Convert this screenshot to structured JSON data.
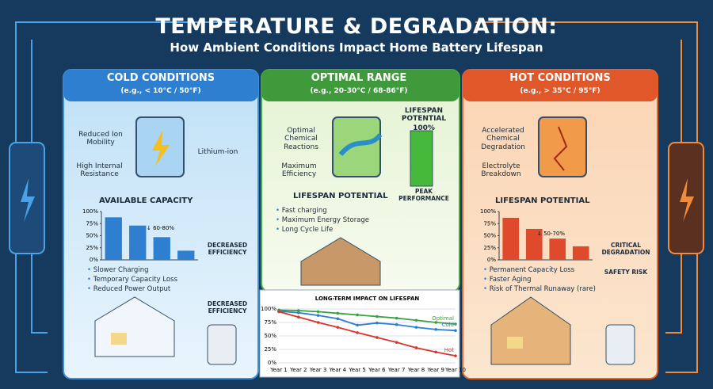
{
  "header": {
    "title": "TEMPERATURE & DEGRADATION:",
    "subtitle": "How Ambient Conditions Impact Home Battery Lifespan"
  },
  "panels": [
    {
      "title": "COLD CONDITIONS",
      "range": "(e.g., < 10°C / 50°F)",
      "callouts": [
        "Reduced Ion Mobility",
        "High Internal Resistance",
        "Lithium-ion"
      ],
      "section": "AVAILABLE CAPACITY",
      "bullets": [
        "Slower Charging",
        "Temporary Capacity Loss",
        "Reduced Power Output"
      ],
      "gauge_labels": [
        "DECREASED EFFICIENCY",
        "DECREASED EFFICIENCY"
      ]
    },
    {
      "title": "OPTIMAL RANGE",
      "range": "(e.g., 20-30°C / 68-86°F)",
      "callouts": [
        "Optimal Chemical Reactions",
        "Maximum Efficiency"
      ],
      "potential": {
        "label": "LIFESPAN POTENTIAL",
        "value": "100%",
        "caption": "PEAK PERFORMANCE"
      },
      "section": "LIFESPAN POTENTIAL",
      "bullets": [
        "Fast charging",
        "Maximum Energy Storage",
        "Long Cycle Life"
      ]
    },
    {
      "title": "HOT CONDITIONS",
      "range": "(e.g., > 35°C / 95°F)",
      "callouts": [
        "Accelerated Chemical Degradation",
        "Electrolyte Breakdown"
      ],
      "section": "LIFESPAN POTENTIAL",
      "bullets": [
        "Permanent Capacity Loss",
        "Faster Aging",
        "Risk of Thermal Runaway (rare)"
      ],
      "gauge_labels": [
        "CRITICAL DEGRADATION",
        "SAFETY RISK"
      ]
    }
  ],
  "chart_data": [
    {
      "type": "bar",
      "categories": [
        null,
        null,
        null,
        null
      ],
      "values": [
        88,
        71,
        47,
        19
      ],
      "color": "#2f7fd0",
      "ylim": [
        0,
        100
      ],
      "yticks": [
        {
          "value": 0,
          "label": "0%"
        },
        {
          "value": 25,
          "label": "25%"
        },
        {
          "value": 50,
          "label": "50%"
        },
        {
          "value": 75,
          "label": "75%"
        },
        {
          "value": 100,
          "label": "100%"
        }
      ],
      "annotation": "↓ 60-80%"
    },
    {
      "type": "bar",
      "categories": [
        null,
        null,
        null,
        null
      ],
      "values": [
        87,
        64,
        44,
        28
      ],
      "color": "#e04a2c",
      "ylim": [
        0,
        100
      ],
      "yticks": [
        {
          "value": 0,
          "label": "0%"
        },
        {
          "value": 25,
          "label": "25%"
        },
        {
          "value": 50,
          "label": "50%"
        },
        {
          "value": 75,
          "label": "75%"
        },
        {
          "value": 100,
          "label": "100%"
        }
      ],
      "annotation": "↓ 50-70%"
    },
    {
      "type": "line",
      "title": "LONG-TERM IMPACT ON LIFESPAN",
      "categories": [
        "Year 1",
        "Year 2",
        "Year 3",
        "Year 4",
        "Year 5",
        "Year 6",
        "Year 7",
        "Year 8",
        "Year 9",
        "Year 10"
      ],
      "ylim": [
        0,
        100
      ],
      "yticks": [
        {
          "value": 0,
          "label": "0%"
        },
        {
          "value": 25,
          "label": "25%"
        },
        {
          "value": 50,
          "label": "50%"
        },
        {
          "value": 75,
          "label": "75%"
        },
        {
          "value": 100,
          "label": "100%"
        }
      ],
      "grid": true,
      "series": [
        {
          "name": "Optimal",
          "color": "#3aa040",
          "values": [
            98,
            97,
            95,
            92,
            89,
            86,
            83,
            79,
            75,
            72
          ]
        },
        {
          "name": "Cold",
          "color": "#2a7fd4",
          "values": [
            96,
            93,
            88,
            82,
            70,
            74,
            71,
            66,
            62,
            60
          ]
        },
        {
          "name": "Hot",
          "color": "#d8362a",
          "values": [
            95,
            85,
            75,
            66,
            56,
            47,
            38,
            28,
            20,
            13
          ]
        }
      ]
    }
  ]
}
